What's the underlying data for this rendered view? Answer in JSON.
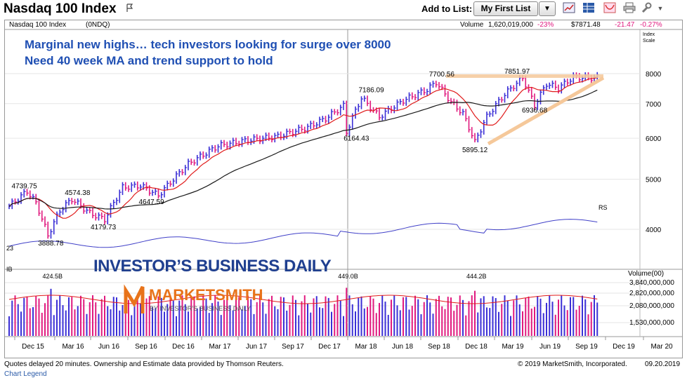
{
  "header": {
    "title": "Nasdaq 100 Index",
    "add_to_list_label": "Add to List:",
    "list_selected": "My First List",
    "dropdown_glyph": "▼",
    "toolbar_icons": [
      "line-chart-icon",
      "grid-layout-icon",
      "overlay-icon",
      "print-icon",
      "wrench-icon"
    ]
  },
  "chart_header": {
    "name": "Nasdaq 100 Index",
    "symbol": "(0NDQ)",
    "volume_label": "Volume",
    "volume_value": "1,620,019,000",
    "volume_change": "-23%",
    "price": "$7871.48",
    "change": "-21.47",
    "change_pct": "-0.27%",
    "index_scale": [
      "Index",
      "Scale"
    ]
  },
  "annotation": {
    "line1": "Marginal new highs… tech investors looking for surge over 8000",
    "line2": "Need 40 week MA and trend support to hold",
    "color": "#1f4fb3"
  },
  "logos": {
    "ibd": "INVESTOR’S BUSINESS DAILY",
    "ms_main": "MARKETSMITH",
    "ms_sub": "BY INVESTOR’S BUSINESS DAILY"
  },
  "colors": {
    "up": "#3b2fd6",
    "down": "#e0197e",
    "ma10": "#e01a1a",
    "ma40": "#1a1a1a",
    "rs": "#4040c8",
    "trendline": "#f5c89a"
  },
  "chart_data": {
    "type": "line",
    "title": "Nasdaq 100 Index",
    "price_axis": {
      "ticks": [
        "8000",
        "7000",
        "6000",
        "5000",
        "4000"
      ],
      "values": [
        8000,
        7000,
        6000,
        5000,
        4000
      ]
    },
    "volume_axis": {
      "label": "Volume(00)",
      "ticks": [
        "3,840,000,000",
        "2,820,000,000",
        "2,080,000,000",
        "1,530,000,000"
      ]
    },
    "x_ticks": [
      "Dec 15",
      "Mar 16",
      "Jun 16",
      "Sep 16",
      "Dec 16",
      "Mar 17",
      "Jun 17",
      "Sep 17",
      "Dec 17",
      "Mar 18",
      "Jun 18",
      "Sep 18",
      "Dec 18",
      "Mar 19",
      "Jun 19",
      "Sep 19",
      "Dec 19",
      "Mar 20"
    ],
    "price_labels": [
      {
        "text": "4739.75",
        "week": 6,
        "value": 4739.75
      },
      {
        "text": "4574.38",
        "week": 21,
        "value": 4574.38
      },
      {
        "text": "3888.78",
        "week": 13,
        "value": 3888.78
      },
      {
        "text": "4179.73",
        "week": 32,
        "value": 4179.73
      },
      {
        "text": "4647.59",
        "week": 50,
        "value": 4647.59
      },
      {
        "text": "6164.43",
        "week": 113,
        "value": 6164.43
      },
      {
        "text": "7186.09",
        "week": 118,
        "value": 7186.09
      },
      {
        "text": "7700.56",
        "week": 143,
        "value": 7700.56
      },
      {
        "text": "5895.12",
        "week": 156,
        "value": 5895.12
      },
      {
        "text": "7851.97",
        "week": 172,
        "value": 7851.97
      },
      {
        "text": "6936.68",
        "week": 176,
        "value": 6936.68
      }
    ],
    "volume_labels": [
      {
        "text": "424.5B",
        "week": 14
      },
      {
        "text": "449.0B",
        "week": 113
      },
      {
        "text": "444.2B",
        "week": 156
      }
    ],
    "series": [
      {
        "name": "RS",
        "label": "RS"
      }
    ],
    "series_notes": {
      "rs_left_value": "23",
      "vol_left_label": "IB"
    }
  },
  "footer": {
    "left": "Quotes delayed 20 minutes. Ownership and Estimate data provided by Thomson Reuters.",
    "copyright": "© 2019 MarketSmith, Incorporated.",
    "date": "09.20.2019",
    "legend_link": "Chart Legend"
  }
}
